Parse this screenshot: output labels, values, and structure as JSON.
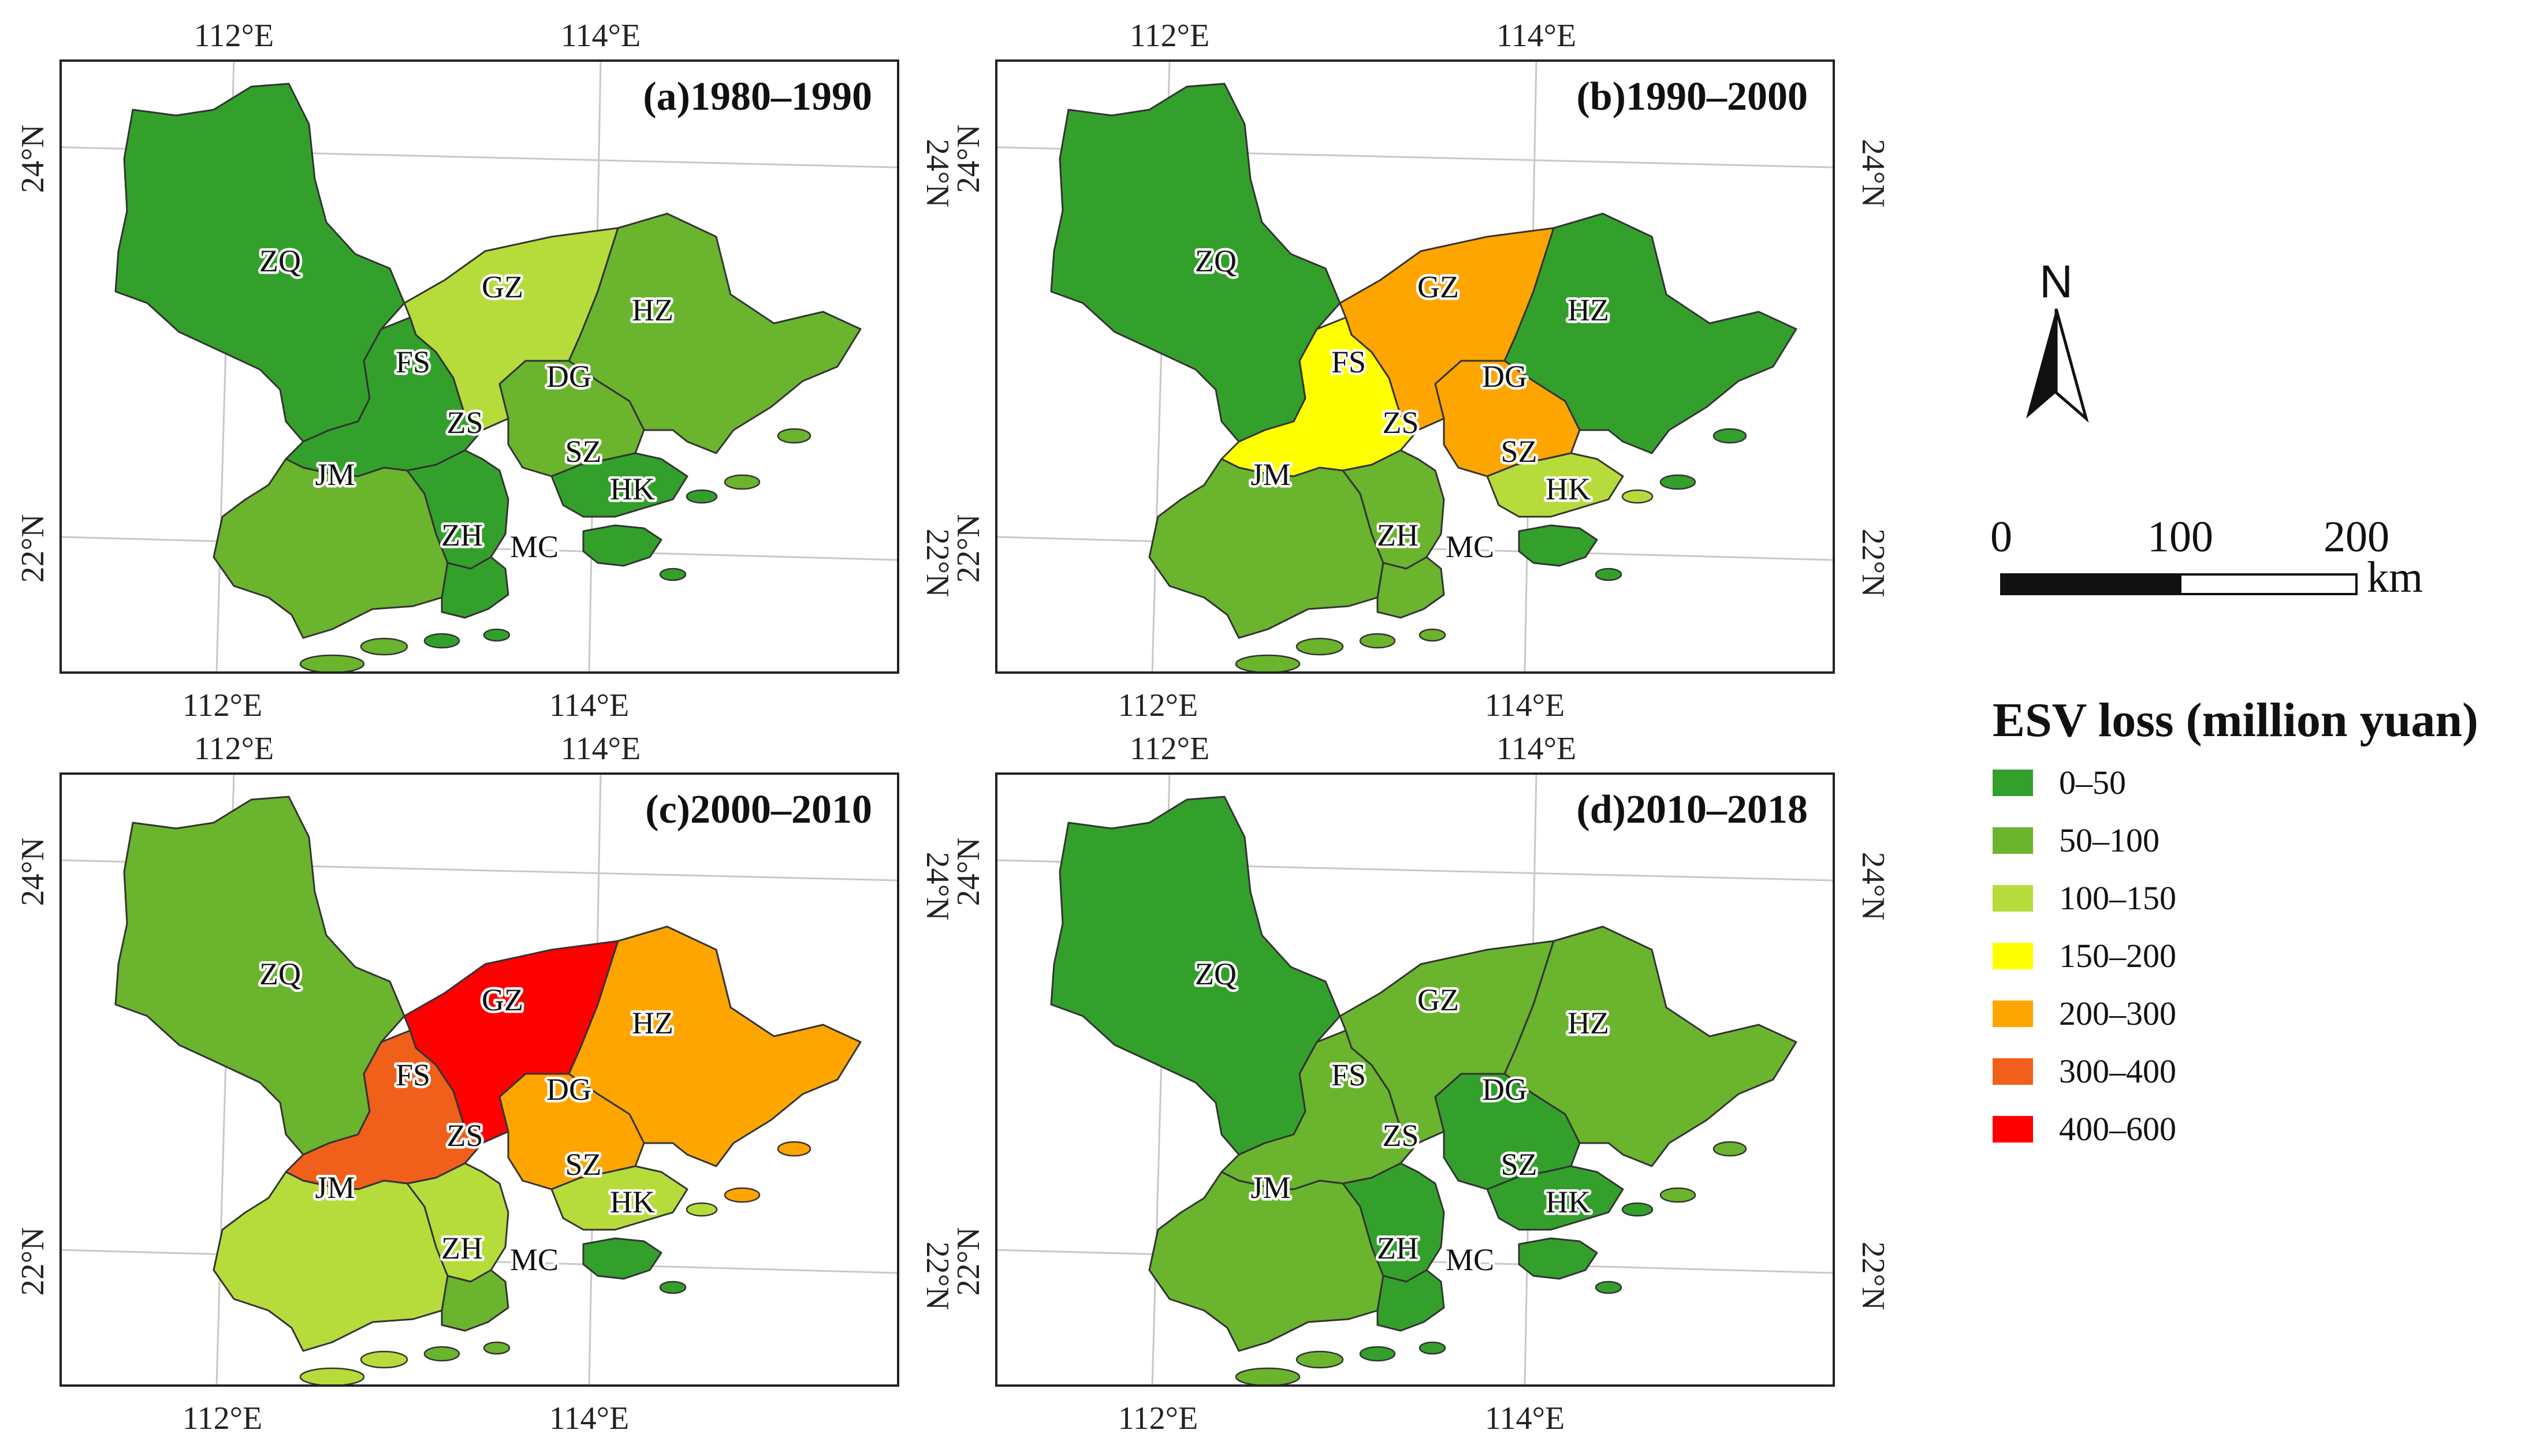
{
  "colors": {
    "0-50": "#33a02c",
    "50-100": "#6ab42e",
    "100-150": "#b6dc3c",
    "150-200": "#ffff00",
    "200-300": "#ffa500",
    "300-400": "#f0601a",
    "400-600": "#ff0000",
    "outline": "#333333",
    "graticule": "#c8c8c8"
  },
  "cities": [
    "ZQ",
    "GZ",
    "HZ",
    "FS",
    "DG",
    "SZ",
    "ZS",
    "JM",
    "ZH",
    "HK",
    "MC"
  ],
  "ticks": {
    "lon": [
      "112°E",
      "114°E"
    ],
    "lat": [
      "24°N",
      "22°N"
    ]
  },
  "panels": [
    {
      "id": "a",
      "title": "(a)1980–1990",
      "classes": {
        "ZQ": "0-50",
        "GZ": "100-150",
        "HZ": "50-100",
        "FS": "0-50",
        "DG": "50-100",
        "SZ": "0-50",
        "ZS": "0-50",
        "JM": "50-100",
        "ZH": "0-50",
        "HK": "0-50"
      }
    },
    {
      "id": "b",
      "title": "(b)1990–2000",
      "classes": {
        "ZQ": "0-50",
        "GZ": "200-300",
        "HZ": "0-50",
        "FS": "150-200",
        "DG": "200-300",
        "SZ": "100-150",
        "ZS": "50-100",
        "JM": "50-100",
        "ZH": "50-100",
        "HK": "0-50"
      }
    },
    {
      "id": "c",
      "title": "(c)2000–2010",
      "classes": {
        "ZQ": "50-100",
        "GZ": "400-600",
        "HZ": "200-300",
        "FS": "300-400",
        "DG": "200-300",
        "SZ": "100-150",
        "ZS": "100-150",
        "JM": "100-150",
        "ZH": "50-100",
        "HK": "0-50"
      }
    },
    {
      "id": "d",
      "title": "(d)2010–2018",
      "classes": {
        "ZQ": "0-50",
        "GZ": "50-100",
        "HZ": "50-100",
        "FS": "50-100",
        "DG": "0-50",
        "SZ": "0-50",
        "ZS": "0-50",
        "JM": "50-100",
        "ZH": "0-50",
        "HK": "0-50"
      }
    }
  ],
  "north_arrow": {
    "label": "N"
  },
  "scale_bar": {
    "labels": [
      "0",
      "100",
      "200"
    ],
    "unit": "km"
  },
  "legend": {
    "title": "ESV loss (million yuan)",
    "items": [
      {
        "key": "0-50",
        "label": "0–50"
      },
      {
        "key": "50-100",
        "label": "50–100"
      },
      {
        "key": "100-150",
        "label": "100–150"
      },
      {
        "key": "150-200",
        "label": "150–200"
      },
      {
        "key": "200-300",
        "label": "200–300"
      },
      {
        "key": "300-400",
        "label": "300–400"
      },
      {
        "key": "400-600",
        "label": "400–600"
      }
    ]
  }
}
